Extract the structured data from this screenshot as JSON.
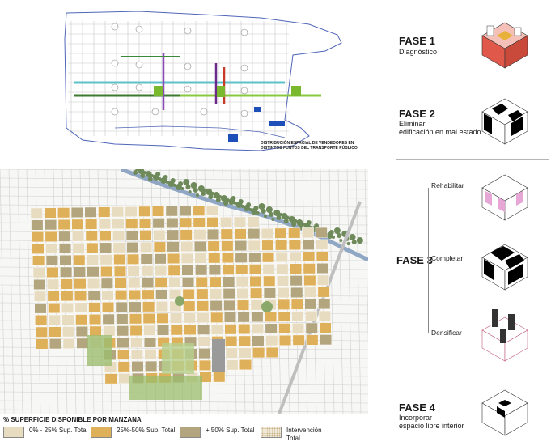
{
  "top_map": {
    "caption_line1": "DISTRIBUCIÓN ESPACIAL DE VENDEDORES EN",
    "caption_line2": "DISTINTOS PUNTOS DEL TRANSPORTE PÚBLICO"
  },
  "phases": [
    {
      "title": "FASE 1",
      "subtitle_lines": [
        "Diagnóstico"
      ]
    },
    {
      "title": "FASE 2",
      "subtitle_lines": [
        "Eliminar",
        "edificación en mal estado"
      ]
    },
    {
      "title": "FASE 3",
      "subtitle_lines": []
    },
    {
      "title": "FASE 4",
      "subtitle_lines": [
        "Incorporar",
        "espacio libre interior"
      ]
    }
  ],
  "phase3_steps": [
    "Rehabilitar",
    "Completar",
    "Densificar"
  ],
  "legend": {
    "title": "% SUPERFICIE DISPONIBLE POR MANZANA",
    "items": [
      {
        "label": "0% - 25% Sup. Total",
        "color": "#e8dcc0"
      },
      {
        "label": "25%-50% Sup. Total",
        "color": "#dfb05a"
      },
      {
        "label": "+ 50% Sup. Total",
        "color": "#b3a57e"
      },
      {
        "label": "Intervención Total",
        "color": "#f1eadb"
      }
    ]
  },
  "colors": {
    "tan_light": "#e8dcc0",
    "orange": "#dfb05a",
    "olive": "#b3a57e",
    "park_green": "#9bbd6e",
    "tree_green": "#6f8a5a",
    "river": "#8fa7c4",
    "phase_red": "#e0584a",
    "phase_pink": "#e6a6d6"
  }
}
